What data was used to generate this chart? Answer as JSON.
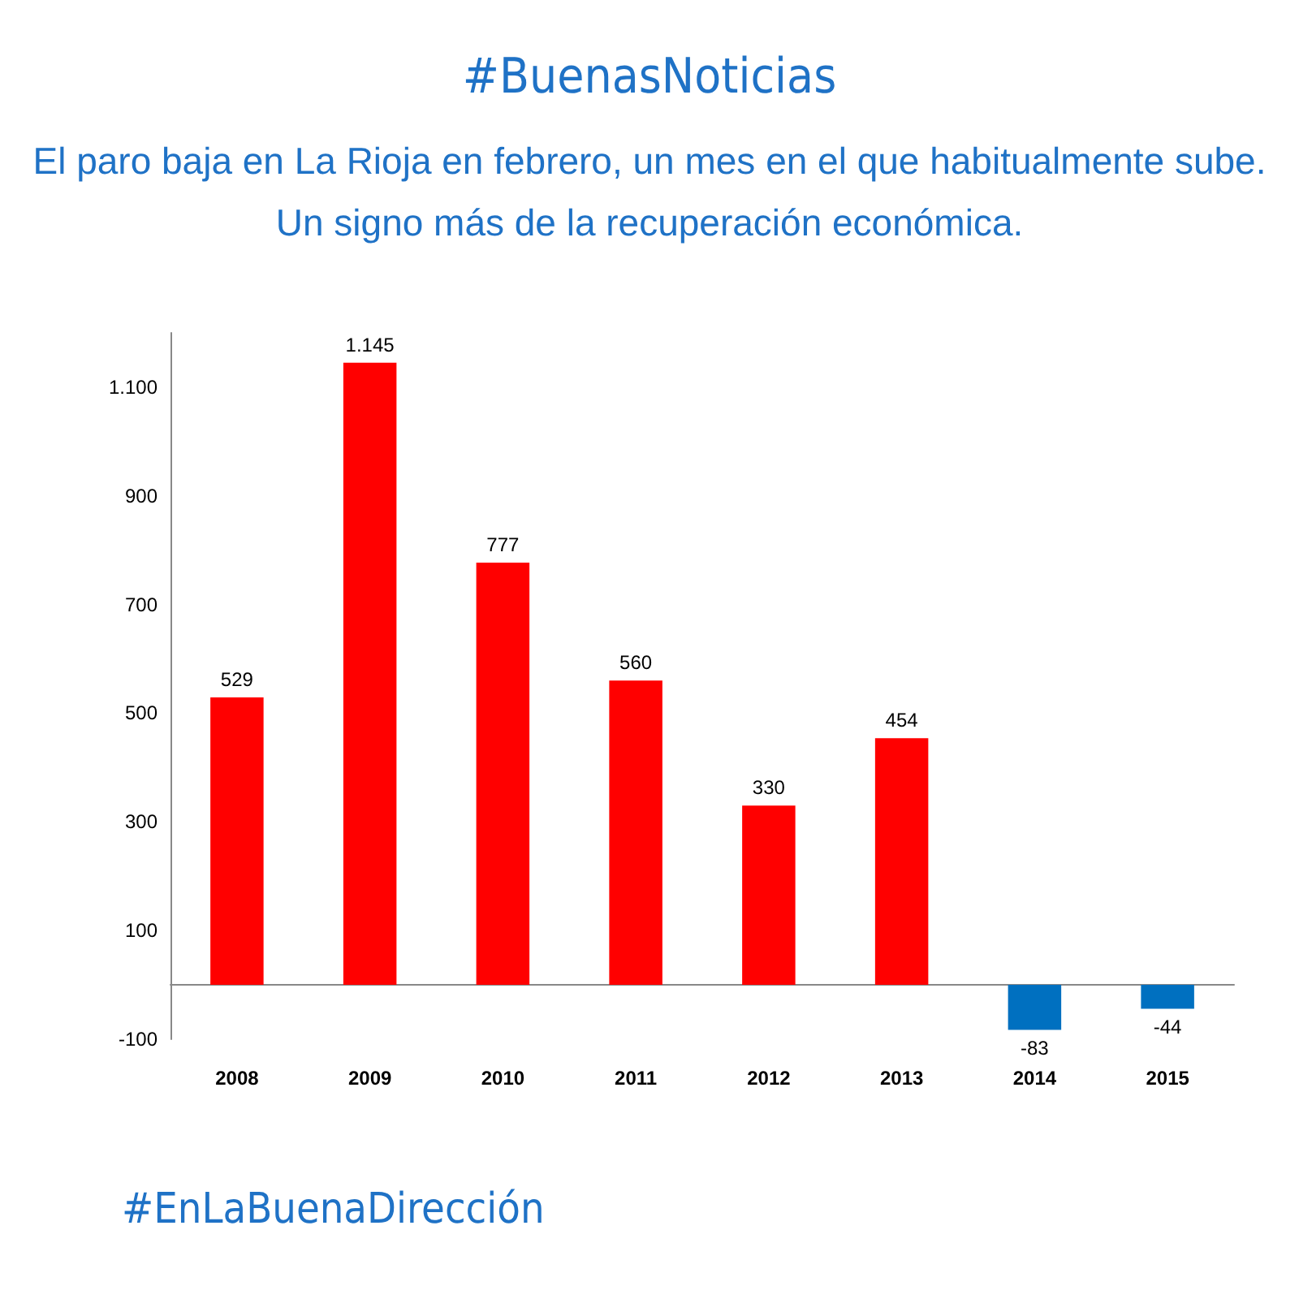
{
  "chart_data": {
    "type": "bar",
    "title": "#BuenasNoticias",
    "subtitle": "El paro baja en La Rioja en febrero, un mes en el que habitualmente sube. Un signo más de la recuperación económica.",
    "categories": [
      "2008",
      "2009",
      "2010",
      "2011",
      "2012",
      "2013",
      "2014",
      "2015"
    ],
    "values": [
      529,
      1145,
      777,
      560,
      330,
      454,
      -83,
      -44
    ],
    "colors": [
      "#ff0000",
      "#ff0000",
      "#ff0000",
      "#ff0000",
      "#ff0000",
      "#ff0000",
      "#0070c0",
      "#0070c0"
    ],
    "value_labels": [
      "529",
      "1.145",
      "777",
      "560",
      "330",
      "454",
      "-83",
      "-44"
    ],
    "ylim": [
      -100,
      1200
    ],
    "yticks": [
      -100,
      100,
      300,
      500,
      700,
      900,
      {
        "value": 1100,
        "label": "1.100"
      }
    ],
    "grid": false,
    "annotations": [
      "#EnLaBuenaDirección"
    ]
  }
}
